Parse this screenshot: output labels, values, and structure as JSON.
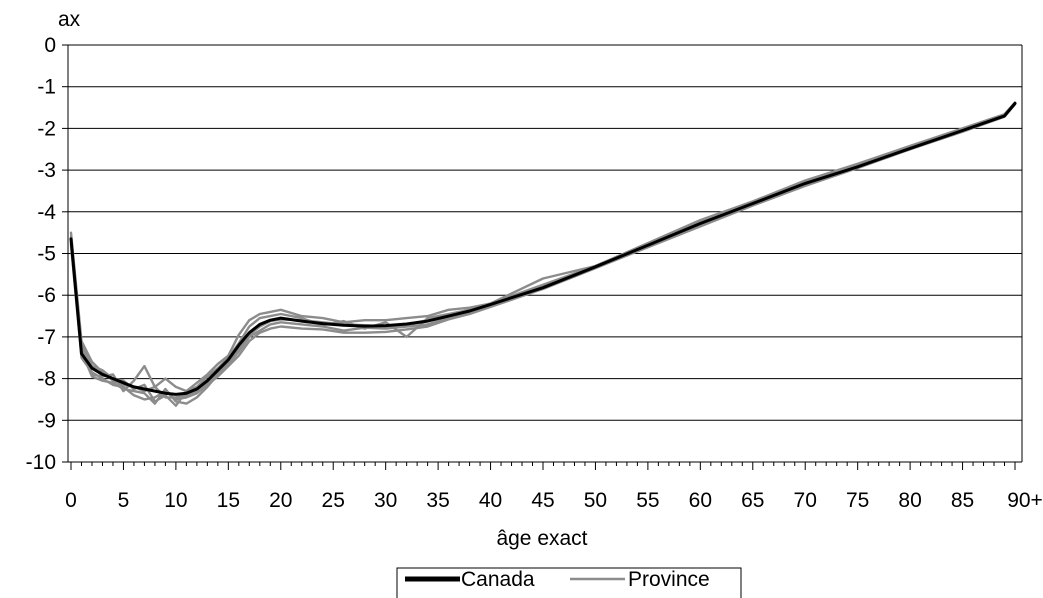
{
  "chart_data": {
    "type": "line",
    "ylabel": "ax",
    "xlabel": "âge exact",
    "x_ticks": [
      0,
      5,
      10,
      15,
      20,
      25,
      30,
      35,
      40,
      45,
      50,
      55,
      60,
      65,
      70,
      75,
      80,
      85,
      90
    ],
    "x_tick_labels": [
      "0",
      "5",
      "10",
      "15",
      "20",
      "25",
      "30",
      "35",
      "40",
      "45",
      "50",
      "55",
      "60",
      "65",
      "70",
      "75",
      "80",
      "85",
      "90+"
    ],
    "y_ticks": [
      0,
      -1,
      -2,
      -3,
      -4,
      -5,
      -6,
      -7,
      -8,
      -9,
      -10
    ],
    "y_tick_labels": [
      "0",
      "-1",
      "-2",
      "-3",
      "-4",
      "-5",
      "-6",
      "-7",
      "-8",
      "-9",
      "-10"
    ],
    "xlim": [
      0,
      90
    ],
    "ylim": [
      -10,
      0
    ],
    "grid": "horizontal",
    "legend_position": "bottom-center",
    "colors": {
      "canada": "#000000",
      "province": "#8c8c8c"
    },
    "x": [
      0,
      1,
      2,
      3,
      4,
      5,
      6,
      7,
      8,
      9,
      10,
      11,
      12,
      13,
      14,
      15,
      16,
      17,
      18,
      19,
      20,
      22,
      24,
      26,
      28,
      30,
      32,
      34,
      36,
      38,
      40,
      45,
      50,
      55,
      60,
      65,
      70,
      75,
      80,
      85,
      89,
      90
    ],
    "series": [
      {
        "name": "Canada",
        "values": [
          -4.65,
          -7.4,
          -7.75,
          -7.9,
          -8.0,
          -8.1,
          -8.2,
          -8.25,
          -8.3,
          -8.35,
          -8.38,
          -8.35,
          -8.25,
          -8.05,
          -7.8,
          -7.55,
          -7.2,
          -6.9,
          -6.7,
          -6.6,
          -6.55,
          -6.62,
          -6.68,
          -6.72,
          -6.74,
          -6.73,
          -6.69,
          -6.62,
          -6.5,
          -6.38,
          -6.22,
          -5.82,
          -5.32,
          -4.8,
          -4.28,
          -3.8,
          -3.32,
          -2.92,
          -2.48,
          -2.05,
          -1.7,
          -1.4
        ]
      },
      {
        "name": "Province",
        "values": [
          -4.5,
          -7.1,
          -7.6,
          -7.85,
          -8.05,
          -8.15,
          -8.2,
          -8.3,
          -8.2,
          -8.45,
          -8.45,
          -8.4,
          -8.3,
          -8.1,
          -7.85,
          -7.6,
          -7.3,
          -6.95,
          -6.75,
          -6.62,
          -6.58,
          -6.6,
          -6.65,
          -6.7,
          -6.72,
          -6.75,
          -6.7,
          -6.6,
          -6.5,
          -6.38,
          -6.22,
          -5.8,
          -5.3,
          -4.8,
          -4.25,
          -3.78,
          -3.3,
          -2.9,
          -2.45,
          -2.0,
          -1.68,
          -1.4
        ]
      },
      {
        "name": "",
        "values": [
          -4.7,
          -7.3,
          -7.9,
          -7.95,
          -7.9,
          -8.3,
          -8.05,
          -7.7,
          -8.2,
          -8.0,
          -8.2,
          -8.3,
          -8.1,
          -7.9,
          -7.65,
          -7.45,
          -6.95,
          -6.6,
          -6.45,
          -6.4,
          -6.35,
          -6.5,
          -6.55,
          -6.65,
          -6.6,
          -6.6,
          -6.55,
          -6.5,
          -6.35,
          -6.3,
          -6.2,
          -5.75,
          -5.3,
          -4.75,
          -4.2,
          -3.75,
          -3.25,
          -2.85,
          -2.42,
          -2.0,
          -1.66,
          -1.38
        ]
      },
      {
        "name": "",
        "values": [
          -4.8,
          -7.5,
          -7.85,
          -8.0,
          -8.15,
          -8.2,
          -8.4,
          -8.5,
          -8.45,
          -8.3,
          -8.5,
          -8.45,
          -8.35,
          -8.15,
          -7.95,
          -7.7,
          -7.45,
          -7.1,
          -6.9,
          -6.8,
          -6.75,
          -6.8,
          -6.82,
          -6.9,
          -6.9,
          -6.88,
          -6.82,
          -6.75,
          -6.58,
          -6.45,
          -6.28,
          -5.85,
          -5.35,
          -4.85,
          -4.35,
          -3.85,
          -3.38,
          -2.95,
          -2.5,
          -2.08,
          -1.72,
          -1.42
        ]
      },
      {
        "name": "",
        "values": [
          -4.6,
          -7.2,
          -7.7,
          -7.8,
          -8.0,
          -8.05,
          -8.25,
          -8.15,
          -8.55,
          -8.4,
          -8.65,
          -8.3,
          -8.2,
          -7.95,
          -7.75,
          -7.5,
          -7.15,
          -6.75,
          -6.55,
          -6.5,
          -6.45,
          -6.55,
          -6.72,
          -6.62,
          -6.8,
          -6.65,
          -7.0,
          -6.55,
          -6.45,
          -6.35,
          -6.2,
          -5.6,
          -5.3,
          -4.78,
          -4.3,
          -3.82,
          -3.35,
          -2.9,
          -2.5,
          -2.05,
          -1.7,
          -1.4
        ]
      },
      {
        "name": "",
        "values": [
          -4.75,
          -7.35,
          -7.95,
          -8.05,
          -8.1,
          -8.25,
          -8.3,
          -8.35,
          -8.6,
          -8.25,
          -8.55,
          -8.6,
          -8.45,
          -8.2,
          -7.9,
          -7.65,
          -7.35,
          -7.0,
          -6.85,
          -6.7,
          -6.65,
          -6.7,
          -6.75,
          -6.85,
          -6.78,
          -6.8,
          -6.75,
          -6.7,
          -6.55,
          -6.42,
          -6.25,
          -5.85,
          -5.35,
          -4.82,
          -4.3,
          -3.82,
          -3.35,
          -2.93,
          -2.48,
          -2.02,
          -1.7,
          -1.4
        ]
      }
    ]
  }
}
